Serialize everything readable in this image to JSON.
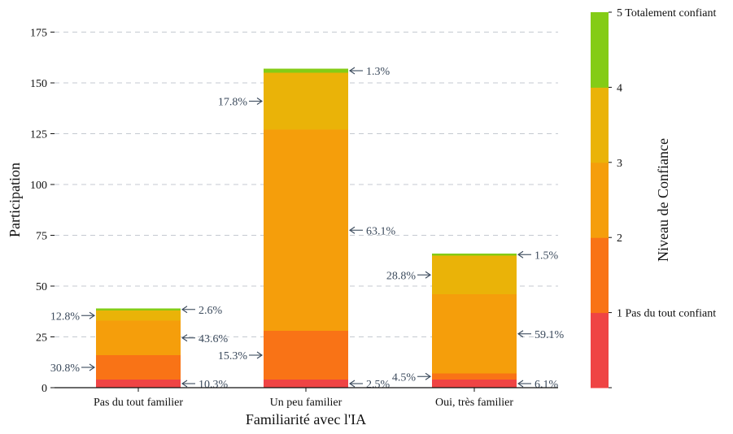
{
  "chart_data": {
    "type": "bar",
    "stacked": true,
    "xlabel": "Familiarité avec l'IA",
    "ylabel": "Participation",
    "ylim": [
      0,
      185
    ],
    "yticks": [
      0,
      25,
      50,
      75,
      100,
      125,
      150,
      175
    ],
    "grid": "horizontal dashed",
    "categories": [
      "Pas du tout familier",
      "Un peu familier",
      "Oui, très familier"
    ],
    "series": [
      {
        "name": "1 Pas du tout confiant",
        "color": "#ef4444",
        "values": [
          4,
          4,
          4
        ]
      },
      {
        "name": "2",
        "color": "#f97316",
        "values": [
          12,
          24,
          3
        ]
      },
      {
        "name": "3",
        "color": "#f59e0b",
        "values": [
          17,
          99,
          39
        ]
      },
      {
        "name": "4",
        "color": "#eab308",
        "values": [
          5,
          28,
          19
        ]
      },
      {
        "name": "5 Totalement confiant",
        "color": "#84cc16",
        "values": [
          1,
          2,
          1
        ]
      }
    ],
    "annotations": [
      [
        {
          "series": 0,
          "text": "10.3%",
          "side": "right"
        },
        {
          "series": 1,
          "text": "30.8%",
          "side": "left"
        },
        {
          "series": 2,
          "text": "43.6%",
          "side": "right"
        },
        {
          "series": 3,
          "text": "12.8%",
          "side": "left"
        },
        {
          "series": 4,
          "text": "2.6%",
          "side": "right"
        }
      ],
      [
        {
          "series": 0,
          "text": "2.5%",
          "side": "right"
        },
        {
          "series": 1,
          "text": "15.3%",
          "side": "left"
        },
        {
          "series": 2,
          "text": "63.1%",
          "side": "right"
        },
        {
          "series": 3,
          "text": "17.8%",
          "side": "left"
        },
        {
          "series": 4,
          "text": "1.3%",
          "side": "right"
        }
      ],
      [
        {
          "series": 0,
          "text": "6.1%",
          "side": "right"
        },
        {
          "series": 1,
          "text": "4.5%",
          "side": "left"
        },
        {
          "series": 2,
          "text": "59.1%",
          "side": "right"
        },
        {
          "series": 3,
          "text": "28.8%",
          "side": "left"
        },
        {
          "series": 4,
          "text": "1.5%",
          "side": "right"
        }
      ]
    ],
    "colorbar": {
      "title": "Niveau de Confiance",
      "ticks": [
        "1 Pas du tout confiant",
        "2",
        "3",
        "4",
        "5 Totalement confiant"
      ]
    }
  }
}
